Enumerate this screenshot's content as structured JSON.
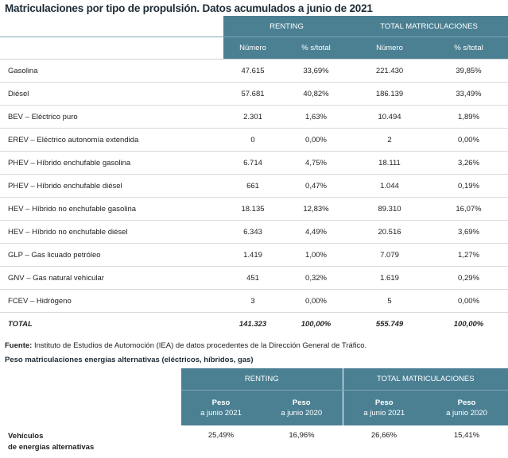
{
  "title": "Matriculaciones por tipo de propulsión. Datos acumulados a junio de 2021",
  "table1": {
    "group_headers": [
      "RENTING",
      "TOTAL MATRICULACIONES"
    ],
    "sub_headers": [
      "Número",
      "% s/total",
      "Número",
      "% s/total"
    ],
    "rows": [
      {
        "label": "Gasolina",
        "renting_num": "47.615",
        "renting_pct": "33,69%",
        "total_num": "221.430",
        "total_pct": "39,85%"
      },
      {
        "label": "Diésel",
        "renting_num": "57.681",
        "renting_pct": "40,82%",
        "total_num": "186.139",
        "total_pct": "33,49%"
      },
      {
        "label": "BEV – Eléctrico puro",
        "renting_num": "2.301",
        "renting_pct": "1,63%",
        "total_num": "10.494",
        "total_pct": "1,89%"
      },
      {
        "label": "EREV – Eléctrico autonomía extendida",
        "renting_num": "0",
        "renting_pct": "0,00%",
        "total_num": "2",
        "total_pct": "0,00%"
      },
      {
        "label": "PHEV – Híbrido enchufable gasolina",
        "renting_num": "6.714",
        "renting_pct": "4,75%",
        "total_num": "18.111",
        "total_pct": "3,26%"
      },
      {
        "label": "PHEV – Híbrido enchufable diésel",
        "renting_num": "661",
        "renting_pct": "0,47%",
        "total_num": "1.044",
        "total_pct": "0,19%"
      },
      {
        "label": "HEV – Híbrido no enchufable gasolina",
        "renting_num": "18.135",
        "renting_pct": "12,83%",
        "total_num": "89.310",
        "total_pct": "16,07%"
      },
      {
        "label": "HEV – Híbrido no enchufable diésel",
        "renting_num": "6.343",
        "renting_pct": "4,49%",
        "total_num": "20.516",
        "total_pct": "3,69%"
      },
      {
        "label": "GLP – Gas licuado petróleo",
        "renting_num": "1.419",
        "renting_pct": "1,00%",
        "total_num": "7.079",
        "total_pct": "1,27%"
      },
      {
        "label": "GNV – Gas natural vehicular",
        "renting_num": "451",
        "renting_pct": "0,32%",
        "total_num": "1.619",
        "total_pct": "0,29%"
      },
      {
        "label": "FCEV – Hidrógeno",
        "renting_num": "3",
        "renting_pct": "0,00%",
        "total_num": "5",
        "total_pct": "0,00%"
      }
    ],
    "total": {
      "label": "TOTAL",
      "renting_num": "141.323",
      "renting_pct": "100,00%",
      "total_num": "555.749",
      "total_pct": "100,00%"
    }
  },
  "source": {
    "label": "Fuente:",
    "text": " Instituto de Estudios de Automoción (IEA) de datos procedentes de la Dirección General de Tráfico."
  },
  "subtitle": "Peso matriculaciones energías alternativas (eléctricos, híbridos, gas)",
  "table2": {
    "group_headers": [
      "RENTING",
      "TOTAL MATRICULACIONES"
    ],
    "sub_headers": [
      {
        "peso": "Peso",
        "when": "a junio 2021"
      },
      {
        "peso": "Peso",
        "when": "a junio 2020"
      },
      {
        "peso": "Peso",
        "when": "a junio 2021"
      },
      {
        "peso": "Peso",
        "when": "a junio 2020"
      }
    ],
    "row": {
      "label_line1": "Vehículos",
      "label_line2": "de energías alternativas",
      "values": [
        "25,49%",
        "16,96%",
        "26,66%",
        "15,41%"
      ]
    }
  }
}
